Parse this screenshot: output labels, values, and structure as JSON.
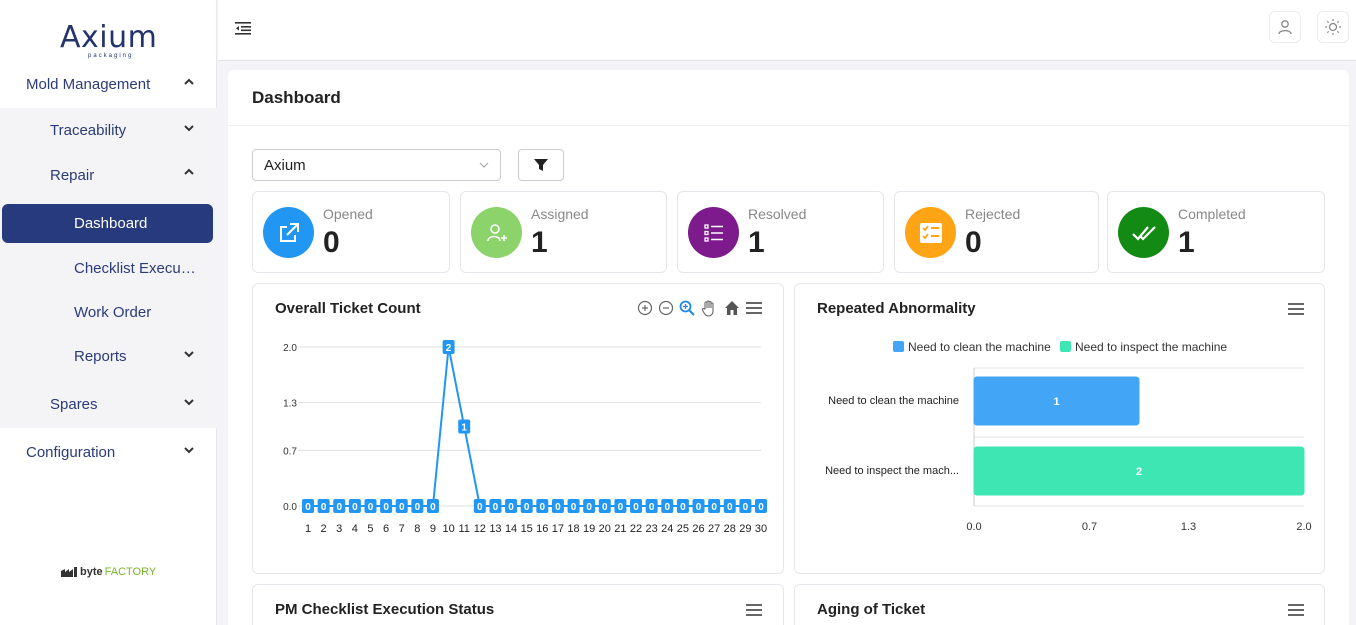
{
  "brand": {
    "name": "Axium",
    "tagline": "packaging",
    "footer_part1": "byte",
    "footer_part2": "FACTORY"
  },
  "sidebar": {
    "items": [
      {
        "label": "Mold Management",
        "level": 1,
        "expanded": true
      },
      {
        "label": "Traceability",
        "level": 2,
        "expanded": false
      },
      {
        "label": "Repair",
        "level": 2,
        "expanded": true
      },
      {
        "label": "Dashboard",
        "level": 3,
        "active": true
      },
      {
        "label": "Checklist Execution",
        "level": 3
      },
      {
        "label": "Work Order",
        "level": 3
      },
      {
        "label": "Reports",
        "level": 3,
        "expanded": false
      },
      {
        "label": "Spares",
        "level": 2,
        "expanded": false
      },
      {
        "label": "Configuration",
        "level": 1,
        "expanded": false
      }
    ]
  },
  "topbar": {
    "menu_icon": "indent-menu-icon",
    "profile_icon": "user-icon",
    "theme_icon": "bulb-icon"
  },
  "main": {
    "title": "Dashboard",
    "plant_select": {
      "value": "Axium"
    },
    "stats": [
      {
        "label": "Opened",
        "value": "0",
        "color": "#2196f3",
        "icon": "external-link-icon"
      },
      {
        "label": "Assigned",
        "value": "1",
        "color": "#8bd36a",
        "icon": "user-plus-icon"
      },
      {
        "label": "Resolved",
        "value": "1",
        "color": "#7d1a8c",
        "icon": "list-icon"
      },
      {
        "label": "Rejected",
        "value": "0",
        "color": "#ffa414",
        "icon": "checklist-icon"
      },
      {
        "label": "Completed",
        "value": "1",
        "color": "#138a14",
        "icon": "double-check-icon"
      }
    ],
    "cards": {
      "overall": {
        "title": "Overall Ticket Count"
      },
      "repeated": {
        "title": "Repeated Abnormality"
      },
      "pm": {
        "title": "PM Checklist Execution Status"
      },
      "aging": {
        "title": "Aging of Ticket"
      }
    }
  },
  "chart_data": [
    {
      "type": "line",
      "title": "Overall Ticket Count",
      "x": [
        1,
        2,
        3,
        4,
        5,
        6,
        7,
        8,
        9,
        10,
        11,
        12,
        13,
        14,
        15,
        16,
        17,
        18,
        19,
        20,
        21,
        22,
        23,
        24,
        25,
        26,
        27,
        28,
        29,
        30
      ],
      "values": [
        0,
        0,
        0,
        0,
        0,
        0,
        0,
        0,
        0,
        2,
        1,
        0,
        0,
        0,
        0,
        0,
        0,
        0,
        0,
        0,
        0,
        0,
        0,
        0,
        0,
        0,
        0,
        0,
        0,
        0
      ],
      "yticks": [
        "0.0",
        "0.7",
        "1.3",
        "2.0"
      ],
      "ylim": [
        0,
        2
      ],
      "color": "#2196f3",
      "grid": true
    },
    {
      "type": "bar",
      "orientation": "horizontal",
      "title": "Repeated Abnormality",
      "categories": [
        "Need to clean the machine",
        "Need to inspect the machine"
      ],
      "category_labels": [
        "Need to clean the machine",
        "Need to inspect the mach..."
      ],
      "series": [
        {
          "name": "Need to clean the machine",
          "values": [
            1,
            null
          ],
          "color": "#42a5f5"
        },
        {
          "name": "Need to inspect the machine",
          "values": [
            null,
            2
          ],
          "color": "#3ee6b4"
        }
      ],
      "xticks": [
        "0.0",
        "0.7",
        "1.3",
        "2.0"
      ],
      "xlim": [
        0,
        2
      ],
      "legend": "top"
    }
  ]
}
